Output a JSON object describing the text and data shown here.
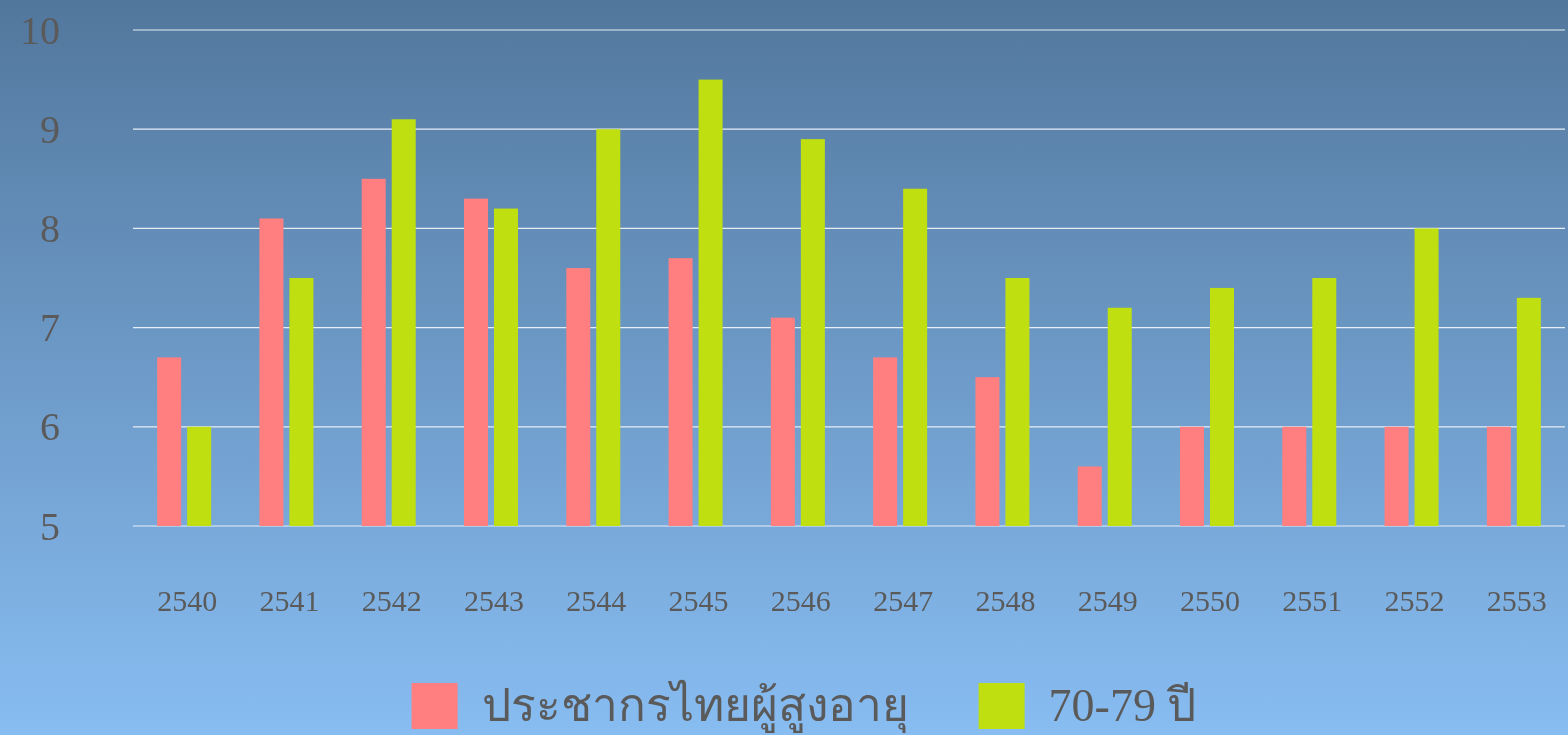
{
  "chart_data": {
    "type": "bar",
    "categories": [
      "2540",
      "2541",
      "2542",
      "2543",
      "2544",
      "2545",
      "2546",
      "2547",
      "2548",
      "2549",
      "2550",
      "2551",
      "2552",
      "2553"
    ],
    "series": [
      {
        "name": "ประชากรไทยผู้สูงอายุ",
        "color": "#ff7f80",
        "values": [
          6.7,
          8.1,
          8.5,
          8.3,
          7.6,
          7.7,
          7.1,
          6.7,
          6.5,
          5.6,
          6.0,
          6.0,
          6.0,
          6.0
        ]
      },
      {
        "name": "70-79 ปี",
        "color": "#bfdf10",
        "values": [
          6.0,
          7.5,
          9.1,
          8.2,
          9.0,
          9.5,
          8.9,
          8.4,
          7.5,
          7.2,
          7.4,
          7.5,
          8.0,
          7.3
        ]
      }
    ],
    "ylim": [
      5,
      10
    ],
    "yticks": [
      5,
      6,
      7,
      8,
      9,
      10
    ],
    "grid": "y",
    "legend": "bottom"
  }
}
